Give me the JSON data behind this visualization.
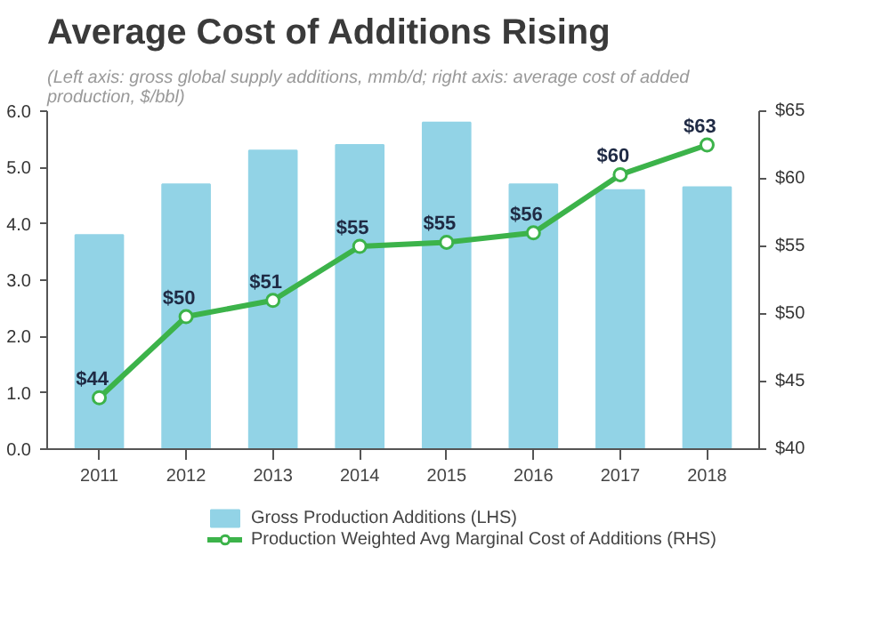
{
  "chart_data": {
    "type": "bar",
    "title": "Average Cost of Additions Rising",
    "subtitle": "(Left axis: gross global supply additions, mmb/d; right axis: average cost of added production, $/bbl)",
    "categories": [
      "2011",
      "2012",
      "2013",
      "2014",
      "2015",
      "2016",
      "2017",
      "2018"
    ],
    "series": [
      {
        "name": "Gross Production Additions (LHS)",
        "type": "bar",
        "color": "#92d3e6",
        "values": [
          3.8,
          4.7,
          5.3,
          5.4,
          5.8,
          4.7,
          4.6,
          4.65
        ]
      },
      {
        "name": "Production Weighted Avg Marginal Cost of Additions (RHS)",
        "type": "line",
        "axis": "y2",
        "color": "#3cb34a",
        "marker": "circle",
        "values": [
          43.8,
          49.8,
          51.0,
          55.0,
          55.3,
          56.0,
          60.3,
          62.5
        ],
        "value_labels": [
          "$44",
          "$50",
          "$51",
          "$55",
          "$55",
          "$56",
          "$60",
          "$63"
        ]
      }
    ],
    "ylim": [
      0,
      6
    ],
    "yticks": [
      {
        "value": 0,
        "label": "0.0"
      },
      {
        "value": 1,
        "label": "1.0"
      },
      {
        "value": 2,
        "label": "2.0"
      },
      {
        "value": 3,
        "label": "3.0"
      },
      {
        "value": 4,
        "label": "4.0"
      },
      {
        "value": 5,
        "label": "5.0"
      },
      {
        "value": 6,
        "label": "6.0"
      }
    ],
    "y2lim": [
      40,
      65
    ],
    "y2ticks": [
      {
        "value": 40,
        "label": "$40"
      },
      {
        "value": 45,
        "label": "$45"
      },
      {
        "value": 50,
        "label": "$50"
      },
      {
        "value": 55,
        "label": "$55"
      },
      {
        "value": 60,
        "label": "$60"
      },
      {
        "value": 65,
        "label": "$65"
      }
    ],
    "grid": false,
    "legend": "bottom"
  }
}
